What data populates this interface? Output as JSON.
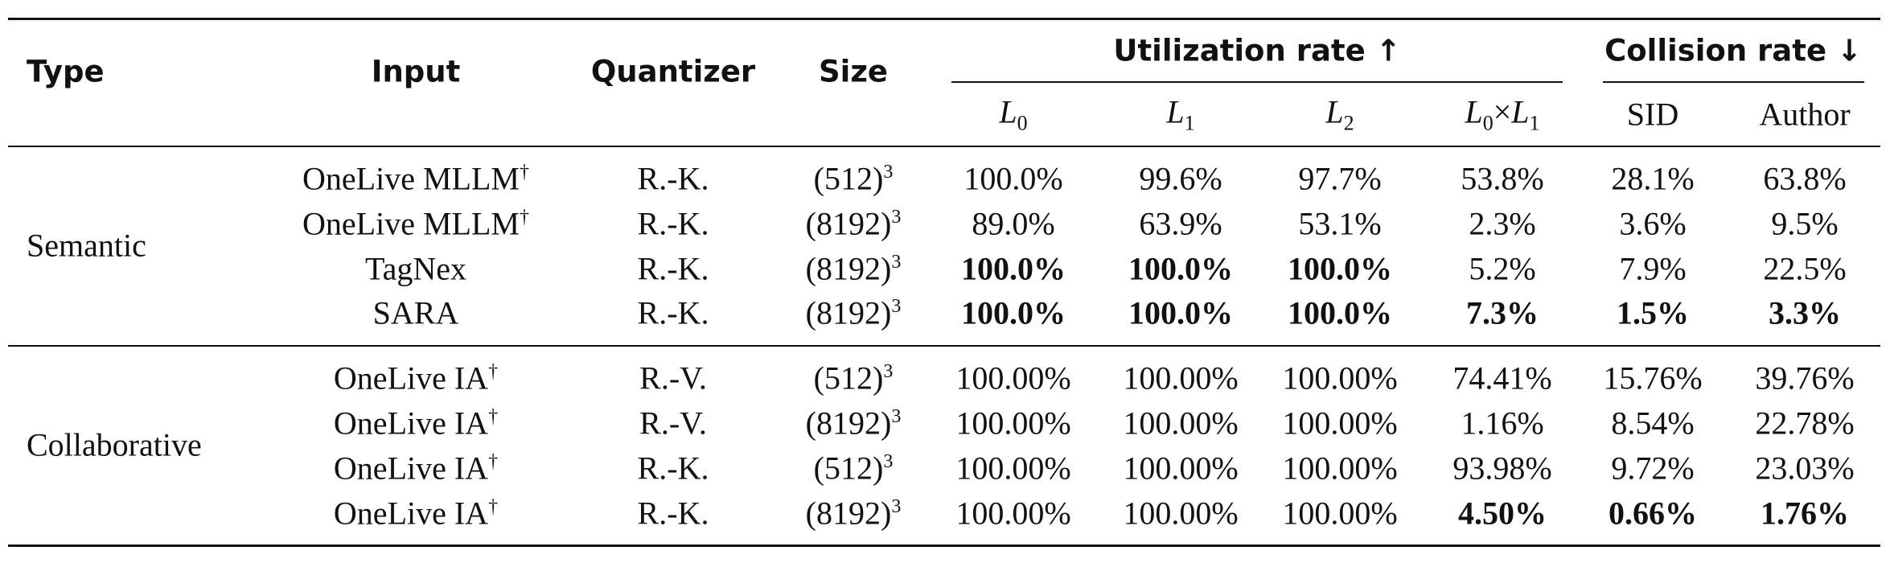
{
  "headers": {
    "type": "Type",
    "input": "Input",
    "quantizer": "Quantizer",
    "size": "Size",
    "utilization": "Utilization rate ↑",
    "collision": "Collision rate ↓",
    "l0": "L",
    "l0_sub": "0",
    "l1": "L",
    "l1_sub": "1",
    "l2": "L",
    "l2_sub": "2",
    "l0xl1_a": "L",
    "l0xl1_a_sub": "0",
    "times": "×",
    "l0xl1_b": "L",
    "l0xl1_b_sub": "1",
    "sid": "SID",
    "author": "Author"
  },
  "groups": [
    {
      "type": "Semantic",
      "rows": [
        {
          "input": "OneLive MLLM",
          "dagger": "†",
          "quantizer": "R.-K.",
          "size": "(512)",
          "exp": "3",
          "l0": "100.0%",
          "l1": "99.6%",
          "l2": "97.7%",
          "l0xl1": "53.8%",
          "sid": "28.1%",
          "author": "63.8%"
        },
        {
          "input": "OneLive MLLM",
          "dagger": "†",
          "quantizer": "R.-K.",
          "size": "(8192)",
          "exp": "3",
          "l0": "89.0%",
          "l1": "63.9%",
          "l2": "53.1%",
          "l0xl1": "2.3%",
          "sid": "3.6%",
          "author": "9.5%"
        },
        {
          "input": "TagNex",
          "dagger": "",
          "quantizer": "R.-K.",
          "size": "(8192)",
          "exp": "3",
          "l0": "100.0%",
          "l1": "100.0%",
          "l2": "100.0%",
          "l0xl1": "5.2%",
          "sid": "7.9%",
          "author": "22.5%"
        },
        {
          "input": "SARA",
          "dagger": "",
          "quantizer": "R.-K.",
          "size": "(8192)",
          "exp": "3",
          "l0": "100.0%",
          "l1": "100.0%",
          "l2": "100.0%",
          "l0xl1": "7.3%",
          "sid": "1.5%",
          "author": "3.3%"
        }
      ]
    },
    {
      "type": "Collaborative",
      "rows": [
        {
          "input": "OneLive IA",
          "dagger": "†",
          "quantizer": "R.-V.",
          "size": "(512)",
          "exp": "3",
          "l0": "100.00%",
          "l1": "100.00%",
          "l2": "100.00%",
          "l0xl1": "74.41%",
          "sid": "15.76%",
          "author": "39.76%"
        },
        {
          "input": "OneLive IA",
          "dagger": "†",
          "quantizer": "R.-V.",
          "size": "(8192)",
          "exp": "3",
          "l0": "100.00%",
          "l1": "100.00%",
          "l2": "100.00%",
          "l0xl1": "1.16%",
          "sid": "8.54%",
          "author": "22.78%"
        },
        {
          "input": "OneLive IA",
          "dagger": "†",
          "quantizer": "R.-K.",
          "size": "(512)",
          "exp": "3",
          "l0": "100.00%",
          "l1": "100.00%",
          "l2": "100.00%",
          "l0xl1": "93.98%",
          "sid": "9.72%",
          "author": "23.03%"
        },
        {
          "input": "OneLive IA",
          "dagger": "†",
          "quantizer": "R.-K.",
          "size": "(8192)",
          "exp": "3",
          "l0": "100.00%",
          "l1": "100.00%",
          "l2": "100.00%",
          "l0xl1": "4.50%",
          "sid": "0.66%",
          "author": "1.76%"
        }
      ]
    }
  ]
}
